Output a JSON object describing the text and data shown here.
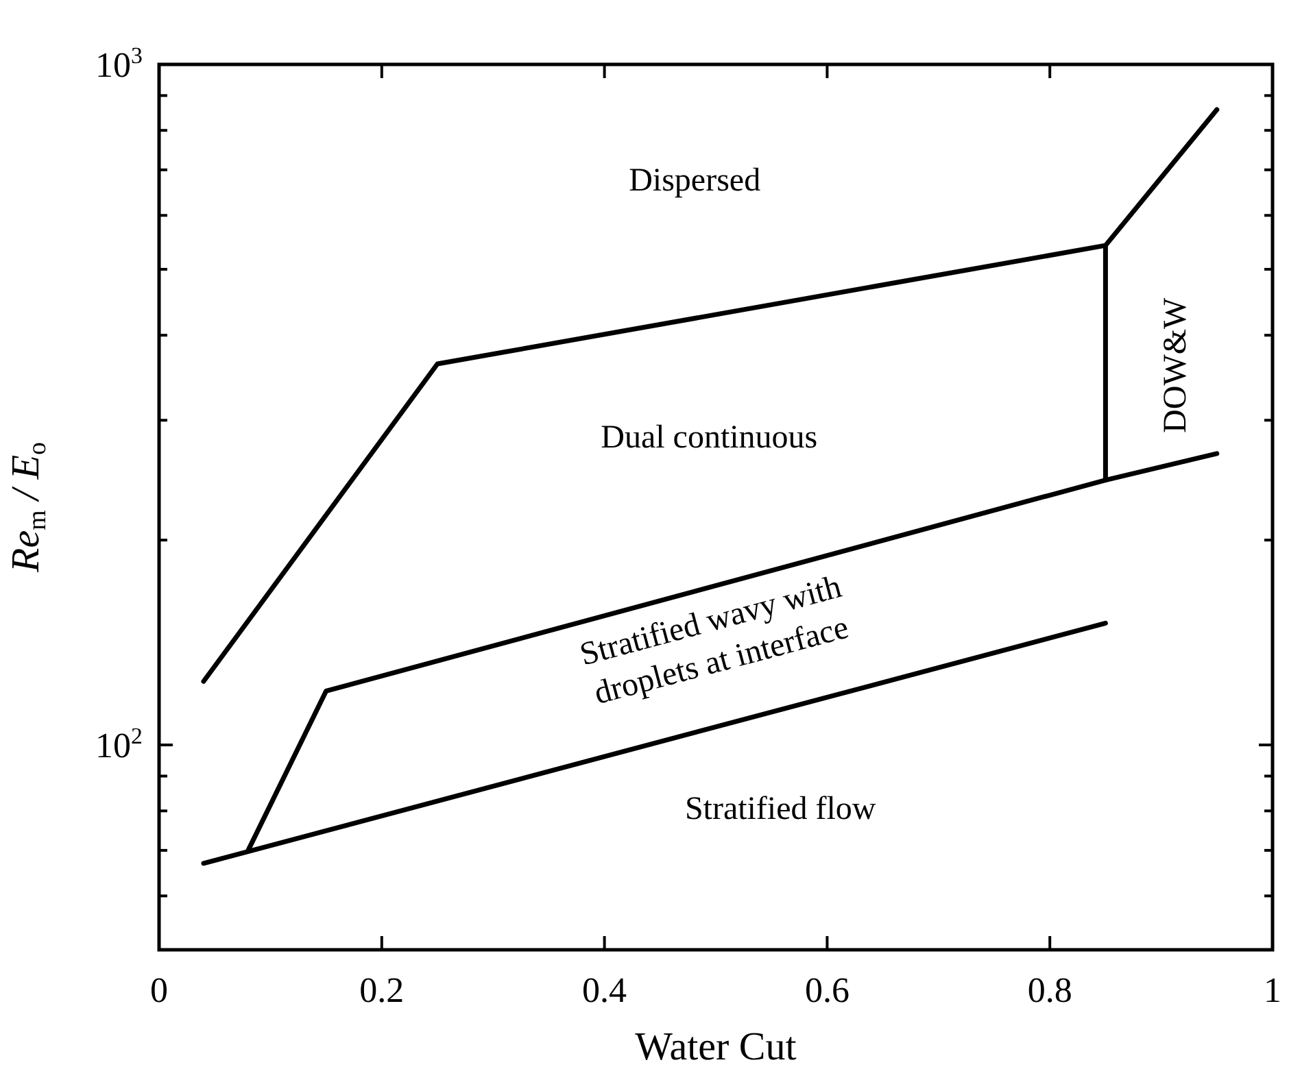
{
  "chart_data": {
    "type": "line",
    "xlabel": "Water Cut",
    "ylabel": "Re$_{m}$ / E$_{o}$",
    "log": "y",
    "marker": "none",
    "line_style": "solid",
    "xlim": [
      0,
      1
    ],
    "xticks": [
      0,
      0.2,
      0.4,
      0.6,
      0.8,
      1
    ],
    "ylim": [
      50,
      1000
    ],
    "yticks": [
      {
        "value": 60,
        "label": null
      },
      {
        "value": 70,
        "label": null
      },
      {
        "value": 80,
        "label": null
      },
      {
        "value": 90,
        "label": null
      },
      {
        "value": 100,
        "label": "10$^{2}$"
      },
      {
        "value": 200,
        "label": null
      },
      {
        "value": 300,
        "label": null
      },
      {
        "value": 400,
        "label": null
      },
      {
        "value": 500,
        "label": null
      },
      {
        "value": 600,
        "label": null
      },
      {
        "value": 700,
        "label": null
      },
      {
        "value": 800,
        "label": null
      },
      {
        "value": 900,
        "label": null
      },
      {
        "value": 1000,
        "label": "10$^{3}$"
      }
    ],
    "series": [
      {
        "color": "#000000",
        "x": [
          0.04,
          0.25,
          0.85,
          0.95
        ],
        "values": [
          124,
          363,
          542,
          858
        ]
      },
      {
        "color": "#000000",
        "x": [
          0.85,
          0.85
        ],
        "values": [
          245,
          542
        ]
      },
      {
        "color": "#000000",
        "x": [
          0.08,
          0.15,
          0.85,
          0.95
        ],
        "values": [
          70,
          120,
          245,
          268
        ]
      },
      {
        "color": "#000000",
        "x": [
          0.04,
          0.85
        ],
        "values": [
          67,
          151
        ]
      }
    ],
    "annotations": [
      "Dispersed",
      "Dual continuous",
      "DOW&W",
      "Stratified wavy with\ndroplets at interface",
      "Stratified flow"
    ]
  }
}
